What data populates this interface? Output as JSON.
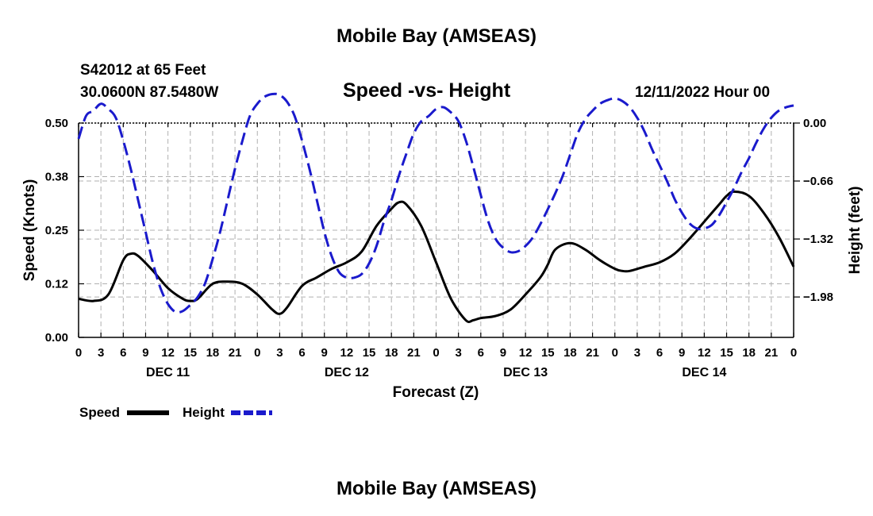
{
  "page_title": "Mobile Bay (AMSEAS)",
  "station": {
    "line1": "S42012 at 65 Feet",
    "line2": "30.0600N  87.5480W"
  },
  "chart_title": "Speed -vs- Height",
  "run_time": "12/11/2022 Hour 00",
  "footer_title": "Mobile Bay (AMSEAS)",
  "colors": {
    "speed": "#000000",
    "height": "#1a1acc",
    "grid": "#b0b0b0"
  },
  "chart_data": {
    "type": "line",
    "title": "Speed -vs- Height",
    "xlabel": "Forecast (Z)",
    "ylabel": "Speed (Knots)",
    "y2label": "Height (feet)",
    "x_unit": "forecast hour",
    "xlim": [
      0,
      96
    ],
    "ylim": [
      0,
      0.5
    ],
    "y2lim": [
      -2.44,
      0.0
    ],
    "yticks": [
      0.0,
      0.125,
      0.25,
      0.375,
      0.5
    ],
    "yticklabels": [
      "0.00",
      "0.12",
      "0.25",
      "0.38",
      "0.50"
    ],
    "y2ticks": [
      0.0,
      -0.66,
      -1.32,
      -1.98
    ],
    "y2ticklabels": [
      "0.00",
      "−0.66",
      "−1.32",
      "−1.98"
    ],
    "xticks": [
      0,
      3,
      6,
      9,
      12,
      15,
      18,
      21,
      24,
      27,
      30,
      33,
      36,
      39,
      42,
      45,
      48,
      51,
      54,
      57,
      60,
      63,
      66,
      69,
      72,
      75,
      78,
      81,
      84,
      87,
      90,
      93,
      96
    ],
    "xticklabels": [
      "0",
      "3",
      "6",
      "9",
      "12",
      "15",
      "18",
      "21",
      "0",
      "3",
      "6",
      "9",
      "12",
      "15",
      "18",
      "21",
      "0",
      "3",
      "6",
      "9",
      "12",
      "15",
      "18",
      "21",
      "0",
      "3",
      "6",
      "9",
      "12",
      "15",
      "18",
      "21",
      "0"
    ],
    "day_labels": [
      {
        "label": "DEC 11",
        "hour": 12
      },
      {
        "label": "DEC 12",
        "hour": 36
      },
      {
        "label": "DEC 13",
        "hour": 60
      },
      {
        "label": "DEC 14",
        "hour": 84
      }
    ],
    "grid": true,
    "series": [
      {
        "name": "Speed",
        "axis": "left",
        "style": "solid",
        "x": [
          0,
          2,
          4,
          6,
          7,
          8,
          10,
          12,
          14,
          15,
          16,
          18,
          20,
          22,
          24,
          26,
          27,
          28,
          30,
          32,
          34,
          36,
          38,
          40,
          42,
          43,
          44,
          46,
          48,
          50,
          52,
          53,
          54,
          56,
          58,
          60,
          62,
          63,
          64,
          66,
          68,
          70,
          72,
          73,
          74,
          76,
          78,
          80,
          82,
          84,
          86,
          87,
          88,
          90,
          92,
          94,
          96
        ],
        "y": [
          0.09,
          0.085,
          0.1,
          0.18,
          0.195,
          0.19,
          0.155,
          0.115,
          0.09,
          0.085,
          0.09,
          0.125,
          0.13,
          0.125,
          0.1,
          0.065,
          0.055,
          0.07,
          0.12,
          0.14,
          0.16,
          0.175,
          0.2,
          0.26,
          0.3,
          0.315,
          0.31,
          0.26,
          0.175,
          0.09,
          0.04,
          0.04,
          0.045,
          0.05,
          0.065,
          0.1,
          0.14,
          0.17,
          0.205,
          0.22,
          0.205,
          0.18,
          0.16,
          0.155,
          0.155,
          0.165,
          0.175,
          0.195,
          0.23,
          0.27,
          0.31,
          0.33,
          0.34,
          0.33,
          0.29,
          0.235,
          0.165
        ]
      },
      {
        "name": "Height",
        "axis": "right",
        "style": "dashed",
        "x": [
          0,
          1,
          2,
          3,
          4,
          5,
          6,
          7,
          8,
          9,
          10,
          11,
          12,
          13,
          14,
          15,
          16,
          17,
          18,
          19,
          20,
          21,
          22,
          23,
          24,
          25,
          26,
          27,
          28,
          29,
          30,
          31,
          32,
          33,
          34,
          35,
          36,
          37,
          38,
          39,
          40,
          41,
          42,
          43,
          44,
          45,
          46,
          47,
          48,
          49,
          50,
          51,
          52,
          53,
          54,
          55,
          56,
          57,
          58,
          59,
          60,
          61,
          62,
          63,
          64,
          65,
          66,
          67,
          68,
          69,
          70,
          71,
          72,
          73,
          74,
          75,
          76,
          77,
          78,
          79,
          80,
          81,
          82,
          83,
          84,
          85,
          86,
          87,
          88,
          89,
          90,
          91,
          92,
          93,
          94,
          95,
          96
        ],
        "y": [
          -0.18,
          0.08,
          0.14,
          0.22,
          0.16,
          0.06,
          -0.2,
          -0.52,
          -0.88,
          -1.24,
          -1.6,
          -1.88,
          -2.06,
          -2.15,
          -2.14,
          -2.07,
          -1.98,
          -1.82,
          -1.55,
          -1.24,
          -0.88,
          -0.52,
          -0.2,
          0.08,
          0.22,
          0.3,
          0.33,
          0.32,
          0.24,
          0.08,
          -0.2,
          -0.52,
          -0.88,
          -1.24,
          -1.52,
          -1.7,
          -1.76,
          -1.76,
          -1.72,
          -1.6,
          -1.4,
          -1.12,
          -0.88,
          -0.6,
          -0.35,
          -0.12,
          0.02,
          0.08,
          0.16,
          0.18,
          0.12,
          0.02,
          -0.2,
          -0.5,
          -0.82,
          -1.12,
          -1.32,
          -1.42,
          -1.47,
          -1.46,
          -1.4,
          -1.3,
          -1.15,
          -0.98,
          -0.8,
          -0.6,
          -0.36,
          -0.12,
          0.04,
          0.14,
          0.22,
          0.26,
          0.28,
          0.25,
          0.18,
          0.06,
          -0.1,
          -0.3,
          -0.48,
          -0.66,
          -0.86,
          -1.02,
          -1.14,
          -1.2,
          -1.2,
          -1.16,
          -1.05,
          -0.9,
          -0.74,
          -0.56,
          -0.4,
          -0.22,
          -0.06,
          0.06,
          0.14,
          0.18,
          0.2
        ]
      }
    ],
    "legend": [
      {
        "label": "Speed",
        "style": "solid"
      },
      {
        "label": "Height",
        "style": "dashed"
      }
    ],
    "legend_position": "bottom-left"
  }
}
